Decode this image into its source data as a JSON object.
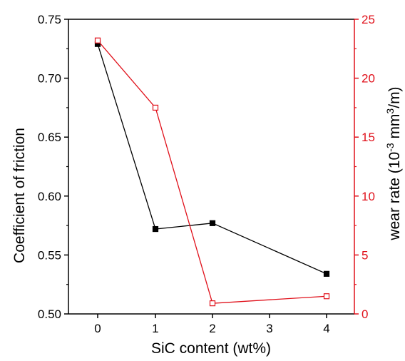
{
  "chart_data": {
    "type": "line",
    "categories": [
      "0",
      "1",
      "2",
      "3",
      "4"
    ],
    "xlabel": "SiC content (wt%)",
    "ylabel_left": "Coefficient of friction",
    "ylabel_right": {
      "prefix": "wear rate (10",
      "exp1": "-3",
      "mid": " mm",
      "exp2": "3",
      "suffix": "/m)"
    },
    "ylim_left": [
      0.5,
      0.75
    ],
    "yticks_left": [
      "0.50",
      "0.55",
      "0.60",
      "0.65",
      "0.70",
      "0.75"
    ],
    "ylim_right": [
      0,
      25
    ],
    "yticks_right": [
      "0",
      "5",
      "10",
      "15",
      "20",
      "25"
    ],
    "grid": false,
    "legend": "none",
    "series": [
      {
        "axis": "left",
        "color": "#000000",
        "marker": "filled-square",
        "x": [
          "0",
          "1",
          "2",
          "4"
        ],
        "values": [
          0.729,
          0.572,
          0.577,
          0.534
        ]
      },
      {
        "axis": "right",
        "color": "#e0101a",
        "marker": "open-square",
        "x": [
          "0",
          "1",
          "2",
          "4"
        ],
        "values": [
          23.2,
          17.5,
          0.9,
          1.5
        ]
      }
    ]
  }
}
